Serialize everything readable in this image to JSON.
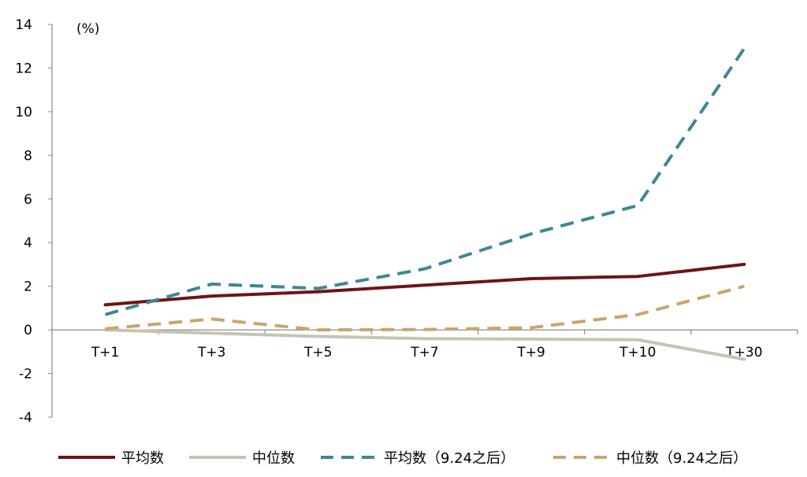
{
  "chart_data": {
    "type": "line",
    "unit_label": "(%)",
    "categories": [
      "T+1",
      "T+3",
      "T+5",
      "T+7",
      "T+9",
      "T+10",
      "T+30"
    ],
    "ylim": [
      -4,
      14
    ],
    "yticks": [
      "-4",
      "-2",
      "0",
      "2",
      "4",
      "6",
      "8",
      "10",
      "12",
      "14"
    ],
    "grid": false,
    "legend_position": "bottom",
    "series": [
      {
        "name": "平均数",
        "values": [
          1.15,
          1.55,
          1.75,
          2.05,
          2.35,
          2.45,
          3.0
        ],
        "color": "#6E1416",
        "dash": "solid"
      },
      {
        "name": "中位数",
        "values": [
          0.0,
          -0.15,
          -0.3,
          -0.4,
          -0.42,
          -0.45,
          -1.35
        ],
        "color": "#C7C3B4",
        "dash": "solid"
      },
      {
        "name": "平均数（9.24之后）",
        "values": [
          0.7,
          2.1,
          1.9,
          2.8,
          4.4,
          5.7,
          12.9
        ],
        "color": "#3F8696",
        "dash": "dashed"
      },
      {
        "name": "中位数（9.24之后）",
        "values": [
          0.05,
          0.5,
          0.0,
          0.02,
          0.1,
          0.7,
          2.0
        ],
        "color": "#C9A56E",
        "dash": "dashed"
      }
    ]
  }
}
